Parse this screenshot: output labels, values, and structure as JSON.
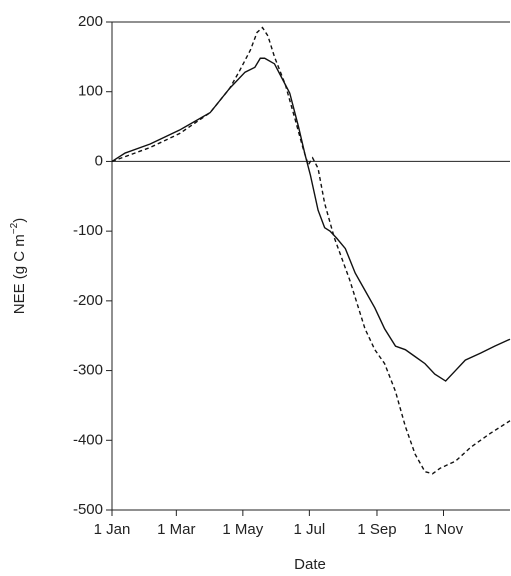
{
  "chart_data": {
    "type": "line",
    "xlabel": "Date",
    "ylabel": {
      "text": "NEE (g C m",
      "superscript": "−2",
      "suffix": ")"
    },
    "xlim": [
      1,
      366
    ],
    "ylim": [
      -500,
      200
    ],
    "xticks": [
      {
        "value": 1,
        "label": "1 Jan"
      },
      {
        "value": 60,
        "label": "1 Mar"
      },
      {
        "value": 121,
        "label": "1 May"
      },
      {
        "value": 182,
        "label": "1 Jul"
      },
      {
        "value": 244,
        "label": "1 Sep"
      },
      {
        "value": 305,
        "label": "1 Nov"
      }
    ],
    "yticks": [
      -500,
      -400,
      -300,
      -200,
      -100,
      0,
      100,
      200
    ],
    "series": [
      {
        "color": "#111111",
        "dash": "solid",
        "x": [
          1,
          13,
          36,
          63,
          91,
          109,
          123,
          132,
          137,
          141,
          150,
          160,
          164,
          172,
          178,
          183,
          190,
          196,
          201,
          207,
          215,
          224,
          233,
          242,
          251,
          261,
          270,
          279,
          288,
          297,
          307,
          316,
          325,
          339,
          352,
          366
        ],
        "values": [
          0,
          12,
          25,
          45,
          70,
          105,
          128,
          135,
          148,
          148,
          140,
          110,
          98,
          50,
          10,
          -20,
          -70,
          -95,
          -100,
          -110,
          -125,
          -160,
          -185,
          -210,
          -240,
          -265,
          -270,
          -280,
          -290,
          -305,
          -315,
          -300,
          -285,
          -275,
          -265,
          -255
        ]
      },
      {
        "color": "#111111",
        "dash": "dashed",
        "x": [
          1,
          36,
          63,
          91,
          109,
          118,
          128,
          134,
          139,
          144,
          150,
          160,
          169,
          176,
          181,
          185,
          190,
          196,
          205,
          219,
          233,
          242,
          251,
          261,
          270,
          279,
          288,
          295,
          302,
          316,
          330,
          348,
          366
        ],
        "values": [
          0,
          20,
          40,
          70,
          105,
          130,
          160,
          185,
          192,
          180,
          150,
          110,
          60,
          20,
          -5,
          5,
          -10,
          -60,
          -110,
          -170,
          -240,
          -270,
          -290,
          -330,
          -380,
          -420,
          -445,
          -448,
          -440,
          -430,
          -410,
          -390,
          -372
        ]
      }
    ]
  }
}
